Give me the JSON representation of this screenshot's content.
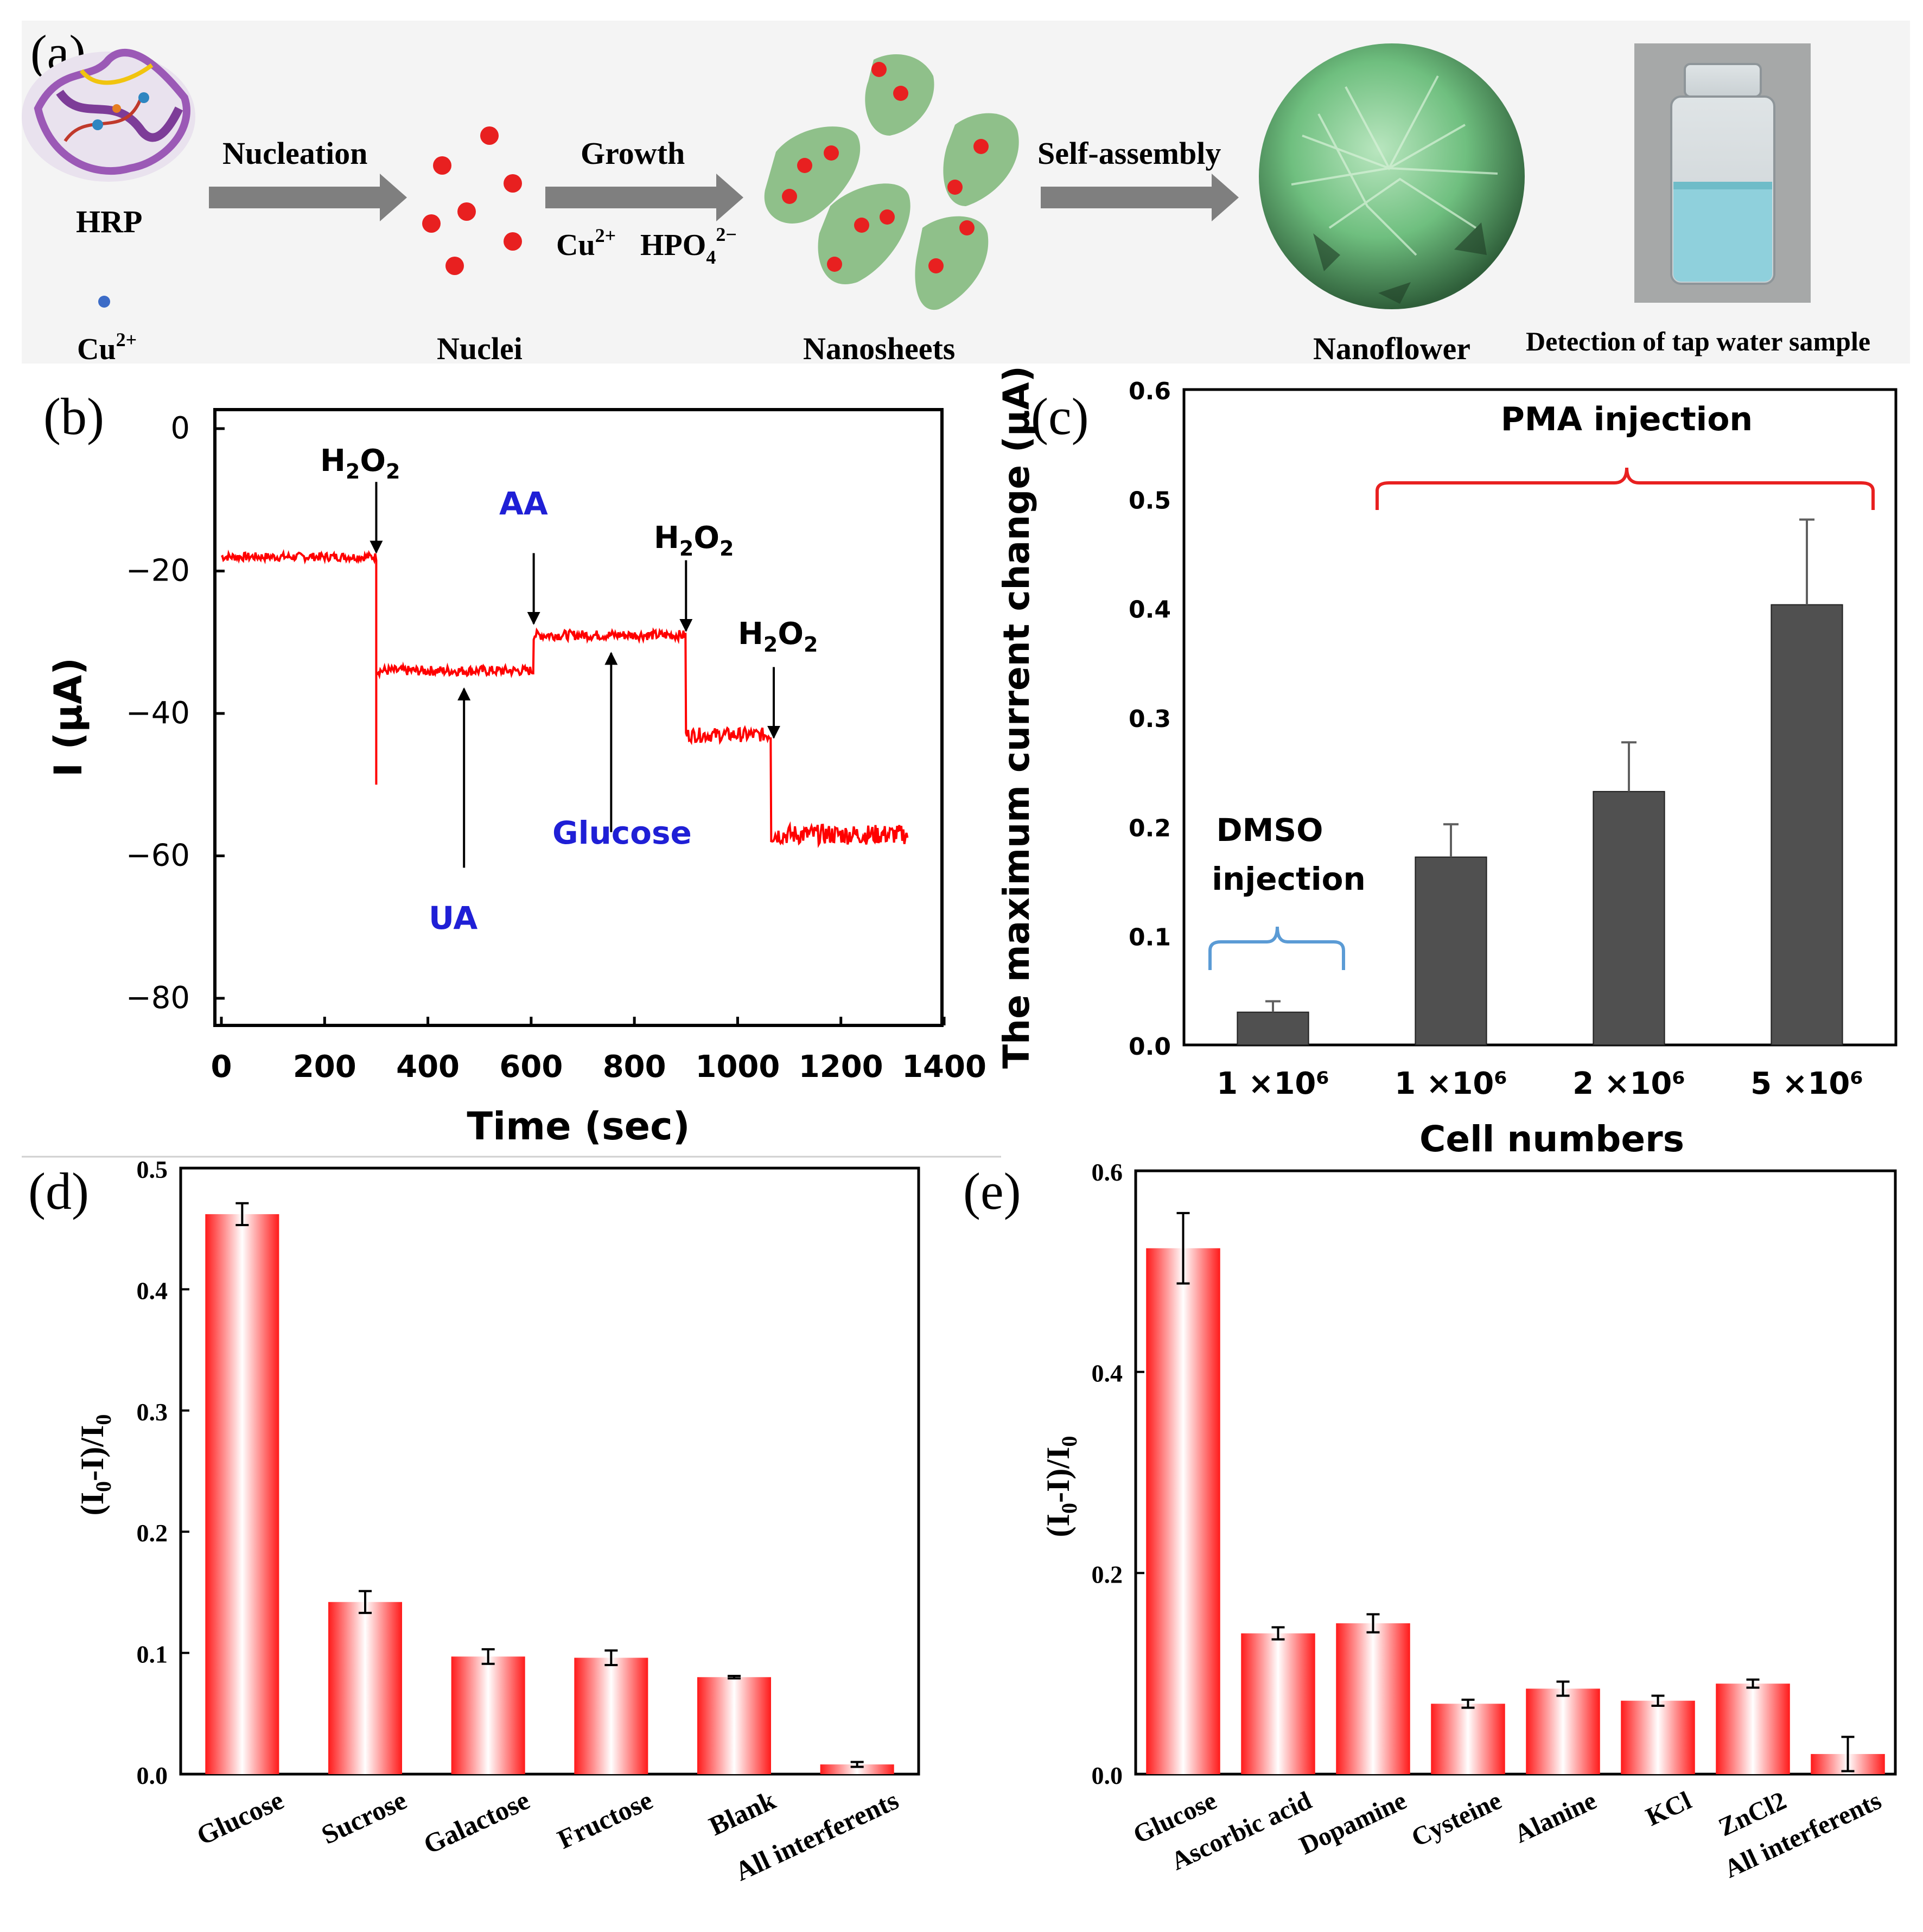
{
  "colors": {
    "red": "#ff0000",
    "bar_dark": "#505050",
    "blue_label": "#1f1fd6",
    "bracket_blue": "#5b9bd5",
    "arrow_gray": "#7f7f7f",
    "sheet_green": "#8fc08a",
    "sphere_green": "#5aa36a"
  },
  "panel_a": {
    "panel_label": "(a)",
    "hrp_label": "HRP",
    "cu_label": "Cu",
    "cu_sup": "2+",
    "nucleation_label": "Nucleation",
    "nuclei_label": "Nuclei",
    "growth_label": "Growth",
    "cu2_label": "Cu",
    "cu2_sup": "2+",
    "hpo_label": "HPO",
    "hpo_sub": "4",
    "hpo_sup": "2−",
    "nanosheets_label": "Nanosheets",
    "self_assembly_label": "Self-assembly",
    "nanoflower_label": "Nanoflower",
    "detection_label": "Detection of tap water sample"
  },
  "panel_b": {
    "panel_label": "(b)",
    "annotations": {
      "h2o2_base": "H",
      "h2o2_sub": "2",
      "h2o2_o": "O",
      "h2o2_sub2": "2",
      "aa": "AA",
      "ua": "UA",
      "glucose": "Glucose"
    }
  },
  "panel_c": {
    "panel_label": "(c)",
    "pma_label": "PMA injection",
    "dmso_label_1": "DMSO",
    "dmso_label_2": "injection"
  },
  "panel_d": {
    "panel_label": "(d)"
  },
  "panel_e": {
    "panel_label": "(e)"
  },
  "chart_data": [
    {
      "id": "b",
      "type": "line",
      "xlabel": "Time (sec)",
      "ylabel": "I (μA)",
      "xlim": [
        0,
        1400
      ],
      "ylim": [
        -80,
        0
      ],
      "xticks": [
        0,
        200,
        400,
        600,
        800,
        1000,
        1200,
        1400
      ],
      "yticks": [
        0,
        -20,
        -40,
        -60,
        -80
      ],
      "series": [
        {
          "name": "current",
          "segments": [
            {
              "x0": 0,
              "x1": 300,
              "y": -18,
              "noise": 0.6
            },
            {
              "x0": 300,
              "x1": 605,
              "y": -34,
              "noise": 0.7
            },
            {
              "x0": 605,
              "x1": 900,
              "y": -29,
              "noise": 0.7
            },
            {
              "x0": 900,
              "x1": 1065,
              "y": -43,
              "noise": 1.0
            },
            {
              "x0": 1065,
              "x1": 1330,
              "y": -57,
              "noise": 1.4
            }
          ],
          "spike": {
            "x": 300,
            "y": -50
          }
        }
      ],
      "events": [
        {
          "label": "H2O2",
          "x": 300,
          "y": -18,
          "dir": "down"
        },
        {
          "label": "AA",
          "x": 605,
          "y": -28,
          "dir": "down"
        },
        {
          "label": "H2O2",
          "x": 900,
          "y": -29,
          "dir": "down"
        },
        {
          "label": "H2O2",
          "x": 1070,
          "y": -44,
          "dir": "down"
        },
        {
          "label": "UA",
          "x": 470,
          "y": -35,
          "dir": "up"
        },
        {
          "label": "Glucose",
          "x": 755,
          "y": -30,
          "dir": "up"
        }
      ]
    },
    {
      "id": "c",
      "type": "bar",
      "xlabel": "Cell numbers",
      "ylabel": "The maximum current change (μA)",
      "ylim": [
        0,
        0.6
      ],
      "yticks": [
        0,
        0.1,
        0.2,
        0.3,
        0.4,
        0.5,
        0.6
      ],
      "categories": [
        "1 ×10⁶",
        "1 ×10⁶",
        "2 ×10⁶",
        "5 ×10⁶"
      ],
      "values": [
        0.03,
        0.172,
        0.232,
        0.403
      ],
      "errors": [
        0.01,
        0.03,
        0.045,
        0.078
      ]
    },
    {
      "id": "d",
      "type": "bar",
      "xlabel": "",
      "ylabel": "(I0-I)/I0",
      "ylim": [
        0,
        0.5
      ],
      "yticks": [
        0.0,
        0.1,
        0.2,
        0.3,
        0.4,
        0.5
      ],
      "categories": [
        "Glucose",
        "Sucrose",
        "Galactose",
        "Fructose",
        "Blank",
        "All  interferents"
      ],
      "values": [
        0.462,
        0.142,
        0.097,
        0.096,
        0.08,
        0.008
      ],
      "errors": [
        0.009,
        0.009,
        0.006,
        0.006,
        0.001,
        0.002
      ]
    },
    {
      "id": "e",
      "type": "bar",
      "xlabel": "",
      "ylabel": "(I0-I)/I0",
      "ylim": [
        0,
        0.6
      ],
      "yticks": [
        0.0,
        0.2,
        0.4,
        0.6
      ],
      "categories": [
        "Glucose",
        "Ascorbic acid",
        "Dopamine",
        "Cysteine",
        "Alanine",
        "KCl",
        "ZnCl2",
        "All interferents"
      ],
      "values": [
        0.523,
        0.14,
        0.15,
        0.07,
        0.085,
        0.073,
        0.09,
        0.02
      ],
      "errors": [
        0.035,
        0.006,
        0.009,
        0.004,
        0.007,
        0.005,
        0.004,
        0.017
      ]
    }
  ]
}
